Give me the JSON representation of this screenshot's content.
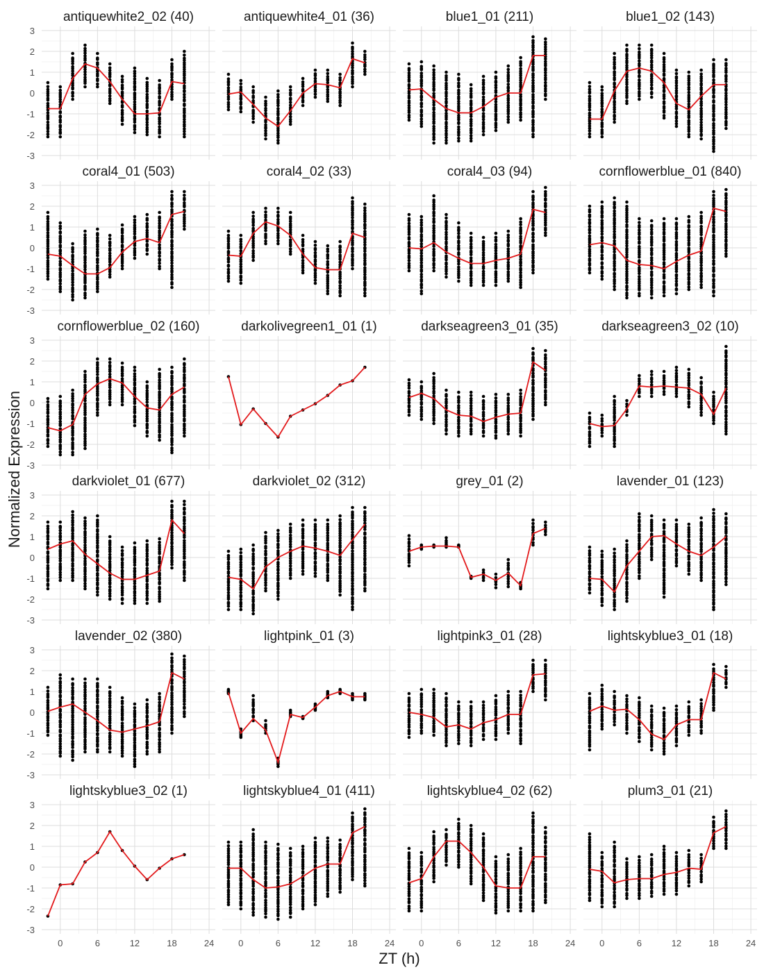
{
  "chart_data": {
    "type": "scatter",
    "xlabel": "ZT (h)",
    "ylabel": "Normalized Expression",
    "x_ticks": [
      0,
      6,
      12,
      18,
      24
    ],
    "y_ticks": [
      -3,
      -2,
      -1,
      0,
      1,
      2,
      3
    ],
    "xlim": [
      -3,
      25
    ],
    "ylim": [
      -3.2,
      3.2
    ],
    "grid": true,
    "point_color": "#000000",
    "line_color": "#e31a1c",
    "time_points": [
      -2,
      0,
      2,
      4,
      6,
      8,
      10,
      12,
      14,
      16,
      18,
      20
    ],
    "panels": [
      {
        "title": "antiquewhite2_02 (40)",
        "mean": [
          -0.75,
          -0.75,
          0.7,
          1.4,
          1.2,
          0.55,
          -0.3,
          -1.0,
          -1.0,
          -0.95,
          0.55,
          0.45
        ],
        "ymin": [
          -2.1,
          -2.1,
          -0.3,
          0.3,
          0.3,
          -0.5,
          -1.5,
          -1.9,
          -2.0,
          -2.1,
          -0.3,
          -2.1
        ],
        "ymax": [
          0.5,
          0.3,
          1.9,
          2.3,
          1.9,
          1.4,
          0.8,
          1.2,
          0.7,
          0.6,
          1.6,
          2.0
        ]
      },
      {
        "title": "antiquewhite4_01 (36)",
        "mean": [
          -0.05,
          0.05,
          -0.55,
          -1.2,
          -1.6,
          -0.85,
          0.0,
          0.45,
          0.4,
          0.25,
          1.65,
          1.45
        ],
        "ymin": [
          -0.8,
          -0.9,
          -1.4,
          -2.2,
          -2.4,
          -1.5,
          -0.6,
          -0.2,
          -0.4,
          -0.6,
          0.3,
          0.9
        ],
        "ymax": [
          0.9,
          0.6,
          0.3,
          -0.2,
          0.1,
          0.3,
          0.7,
          1.1,
          1.1,
          0.9,
          2.4,
          2.0
        ]
      },
      {
        "title": "blue1_01 (211)",
        "mean": [
          0.15,
          0.2,
          -0.3,
          -0.75,
          -0.95,
          -0.95,
          -0.65,
          -0.2,
          0.0,
          0.0,
          1.8,
          1.8
        ],
        "ymin": [
          -1.3,
          -1.6,
          -2.4,
          -2.4,
          -2.3,
          -2.3,
          -2.0,
          -1.8,
          -1.4,
          -1.3,
          -2.1,
          -0.3
        ],
        "ymax": [
          1.4,
          1.5,
          1.3,
          1.0,
          0.9,
          0.4,
          0.8,
          1.0,
          1.3,
          1.7,
          2.7,
          2.6
        ]
      },
      {
        "title": "blue1_02 (143)",
        "mean": [
          -1.25,
          -1.25,
          0.1,
          1.05,
          1.2,
          1.05,
          0.5,
          -0.5,
          -0.8,
          -0.15,
          0.4,
          0.4
        ],
        "ymin": [
          -2.1,
          -2.1,
          -1.4,
          -0.5,
          -0.3,
          -0.2,
          -1.2,
          -1.6,
          -2.1,
          -2.2,
          -2.8,
          -1.7
        ],
        "ymax": [
          0.5,
          0.3,
          1.9,
          2.3,
          2.3,
          2.3,
          1.9,
          1.1,
          1.0,
          1.1,
          1.6,
          1.6
        ]
      },
      {
        "title": "coral4_01 (503)",
        "mean": [
          -0.3,
          -0.4,
          -0.85,
          -1.25,
          -1.25,
          -0.95,
          -0.2,
          0.3,
          0.45,
          0.25,
          1.6,
          1.75
        ],
        "ymin": [
          -1.5,
          -2.1,
          -2.5,
          -2.4,
          -2.1,
          -1.4,
          -1.0,
          -0.5,
          -0.3,
          -1.0,
          -1.9,
          0.9
        ],
        "ymax": [
          1.7,
          1.2,
          0.2,
          0.8,
          0.9,
          0.6,
          1.1,
          1.5,
          1.6,
          1.7,
          2.7,
          2.7
        ]
      },
      {
        "title": "coral4_02 (33)",
        "mean": [
          -0.35,
          -0.4,
          0.7,
          1.25,
          1.05,
          0.6,
          -0.3,
          -0.95,
          -1.05,
          -1.05,
          0.7,
          0.5
        ],
        "ymin": [
          -1.6,
          -1.7,
          -0.6,
          0.2,
          0.2,
          -0.3,
          -1.2,
          -1.7,
          -2.2,
          -2.3,
          -1.0,
          -2.3
        ],
        "ymax": [
          0.8,
          0.6,
          1.7,
          1.9,
          1.9,
          1.7,
          0.6,
          0.3,
          0.1,
          0.3,
          2.4,
          2.1
        ]
      },
      {
        "title": "coral4_03 (94)",
        "mean": [
          0.0,
          -0.05,
          0.25,
          -0.2,
          -0.5,
          -0.75,
          -0.75,
          -0.6,
          -0.5,
          -0.3,
          1.85,
          1.7
        ],
        "ymin": [
          -1.1,
          -2.2,
          -1.1,
          -1.4,
          -1.6,
          -1.8,
          -1.8,
          -1.8,
          -1.6,
          -1.9,
          -1.2,
          0.6
        ],
        "ymax": [
          1.6,
          1.5,
          2.5,
          1.6,
          1.2,
          0.7,
          0.5,
          0.7,
          0.8,
          1.4,
          2.7,
          2.9
        ]
      },
      {
        "title": "cornflowerblue_01 (840)",
        "mean": [
          0.15,
          0.25,
          0.1,
          -0.6,
          -0.8,
          -0.85,
          -1.0,
          -0.65,
          -0.35,
          -0.15,
          1.9,
          1.75
        ],
        "ymin": [
          -1.2,
          -1.5,
          -2.0,
          -2.4,
          -2.3,
          -2.4,
          -2.3,
          -2.2,
          -2.0,
          -1.9,
          -2.3,
          -0.4
        ],
        "ymax": [
          2.0,
          2.2,
          2.4,
          2.2,
          1.4,
          1.3,
          1.4,
          1.4,
          1.5,
          1.7,
          2.7,
          2.8
        ]
      },
      {
        "title": "cornflowerblue_02 (160)",
        "mean": [
          -1.2,
          -1.35,
          -1.05,
          0.4,
          0.9,
          1.15,
          0.95,
          0.3,
          -0.25,
          -0.35,
          0.4,
          0.75
        ],
        "ymin": [
          -2.1,
          -2.5,
          -2.5,
          -2.2,
          -0.6,
          -0.1,
          -0.1,
          -1.1,
          -1.6,
          -1.8,
          -2.4,
          -1.6
        ],
        "ymax": [
          0.2,
          0.3,
          0.6,
          1.5,
          2.1,
          2.1,
          1.9,
          1.7,
          1.0,
          1.6,
          1.7,
          2.1
        ]
      },
      {
        "title": "darkolivegreen1_01 (1)",
        "mean": [
          1.25,
          -1.05,
          -0.3,
          -1.0,
          -1.65,
          -0.65,
          -0.35,
          -0.05,
          0.35,
          0.85,
          1.05,
          1.7
        ],
        "ymin": [
          1.25,
          -1.05,
          -0.3,
          -1.0,
          -1.65,
          -0.65,
          -0.35,
          -0.05,
          0.35,
          0.85,
          1.05,
          1.7
        ],
        "ymax": [
          1.25,
          -1.05,
          -0.3,
          -1.0,
          -1.65,
          -0.65,
          -0.35,
          -0.05,
          0.35,
          0.85,
          1.05,
          1.7
        ]
      },
      {
        "title": "darkseagreen3_01 (35)",
        "mean": [
          0.25,
          0.45,
          0.2,
          -0.35,
          -0.6,
          -0.65,
          -0.9,
          -0.7,
          -0.55,
          -0.5,
          1.95,
          1.55
        ],
        "ymin": [
          -0.6,
          -0.8,
          -1.0,
          -1.5,
          -1.6,
          -1.5,
          -1.6,
          -1.7,
          -1.5,
          -1.6,
          -0.8,
          -0.1
        ],
        "ymax": [
          1.1,
          1.0,
          1.4,
          0.6,
          0.5,
          0.5,
          0.3,
          0.4,
          0.4,
          0.6,
          2.6,
          2.5
        ]
      },
      {
        "title": "darkseagreen3_02 (10)",
        "mean": [
          -1.0,
          -1.15,
          -1.1,
          -0.3,
          0.8,
          0.75,
          0.8,
          0.75,
          0.7,
          0.4,
          -0.55,
          0.7
        ],
        "ymin": [
          -2.1,
          -1.6,
          -2.1,
          -0.6,
          0.3,
          0.3,
          0.4,
          0.3,
          -0.2,
          -0.6,
          -1.0,
          -1.5
        ],
        "ymax": [
          -0.5,
          -0.6,
          0.3,
          0.1,
          1.3,
          1.5,
          1.5,
          1.7,
          1.6,
          1.2,
          0.5,
          2.7
        ]
      },
      {
        "title": "darkviolet_01 (677)",
        "mean": [
          0.4,
          0.65,
          0.8,
          0.15,
          -0.3,
          -0.75,
          -1.05,
          -1.05,
          -0.85,
          -0.65,
          1.8,
          1.15
        ],
        "ymin": [
          -1.5,
          -1.1,
          -1.1,
          -1.5,
          -1.8,
          -2.0,
          -2.2,
          -2.2,
          -2.2,
          -2.1,
          -0.5,
          -1.1
        ],
        "ymax": [
          1.7,
          1.7,
          2.2,
          1.9,
          2.0,
          1.0,
          0.5,
          0.7,
          0.8,
          0.9,
          2.7,
          2.7
        ]
      },
      {
        "title": "darkviolet_02 (312)",
        "mean": [
          -0.95,
          -1.05,
          -1.5,
          -0.45,
          0.0,
          0.3,
          0.55,
          0.45,
          0.3,
          0.1,
          0.85,
          1.6
        ],
        "ymin": [
          -2.5,
          -2.5,
          -2.7,
          -1.6,
          -2.0,
          -1.0,
          -0.8,
          -0.9,
          -1.1,
          -1.8,
          -2.5,
          -1.6
        ],
        "ymax": [
          0.3,
          0.4,
          0.6,
          1.2,
          1.3,
          1.6,
          1.8,
          1.8,
          1.8,
          2.0,
          2.4,
          2.4
        ]
      },
      {
        "title": "grey_01 (2)",
        "mean": [
          0.3,
          0.5,
          0.55,
          0.55,
          0.5,
          -0.95,
          -0.8,
          -1.1,
          -0.75,
          -1.35,
          1.15,
          1.4
        ],
        "ymin": [
          -0.4,
          0.4,
          0.5,
          0.5,
          0.5,
          -1.0,
          -1.1,
          -1.45,
          -1.4,
          -1.5,
          0.6,
          1.1
        ],
        "ymax": [
          1.05,
          0.6,
          0.6,
          0.95,
          0.6,
          -0.9,
          -0.6,
          -0.8,
          -0.1,
          -1.2,
          1.8,
          1.7
        ]
      },
      {
        "title": "lavender_01 (123)",
        "mean": [
          -1.0,
          -1.05,
          -1.65,
          -0.4,
          0.3,
          1.0,
          1.05,
          0.65,
          0.3,
          0.1,
          0.5,
          1.0
        ],
        "ymin": [
          -1.7,
          -2.3,
          -2.5,
          -2.1,
          -1.0,
          -0.1,
          -1.9,
          -0.4,
          -0.8,
          -1.1,
          -2.5,
          -1.3
        ],
        "ymax": [
          0.5,
          0.3,
          0.4,
          0.8,
          2.1,
          2.0,
          1.8,
          1.8,
          1.6,
          1.9,
          2.3,
          2.1
        ]
      },
      {
        "title": "lavender_02 (380)",
        "mean": [
          0.05,
          0.25,
          0.4,
          0.0,
          -0.4,
          -0.85,
          -0.95,
          -0.8,
          -0.65,
          -0.45,
          1.9,
          1.6
        ],
        "ymin": [
          -1.1,
          -2.1,
          -2.3,
          -1.9,
          -1.9,
          -1.9,
          -2.1,
          -2.6,
          -2.0,
          -1.9,
          -1.0,
          -0.2
        ],
        "ymax": [
          1.2,
          1.8,
          1.6,
          1.6,
          1.6,
          1.2,
          0.7,
          0.4,
          0.6,
          0.9,
          2.8,
          2.7
        ]
      },
      {
        "title": "lightpink_01 (3)",
        "mean": [
          0.95,
          -1.0,
          -0.3,
          -0.85,
          -2.4,
          -0.1,
          -0.25,
          0.25,
          0.8,
          1.0,
          0.75,
          0.75
        ],
        "ymin": [
          0.9,
          -1.2,
          -0.4,
          -1.0,
          -2.6,
          -0.2,
          -0.3,
          0.1,
          0.7,
          0.9,
          0.6,
          0.6
        ],
        "ymax": [
          1.1,
          -0.8,
          0.8,
          -0.4,
          -2.2,
          0.1,
          -0.2,
          0.4,
          1.0,
          1.1,
          0.9,
          0.9
        ]
      },
      {
        "title": "lightpink3_01 (28)",
        "mean": [
          0.0,
          -0.1,
          -0.25,
          -0.7,
          -0.6,
          -0.8,
          -0.5,
          -0.35,
          -0.1,
          -0.1,
          1.8,
          1.85
        ],
        "ymin": [
          -1.2,
          -1.0,
          -1.1,
          -1.6,
          -1.5,
          -1.6,
          -1.3,
          -1.3,
          -1.0,
          -1.5,
          1.0,
          0.6
        ],
        "ymax": [
          0.9,
          1.1,
          1.1,
          0.9,
          0.5,
          0.5,
          0.5,
          0.8,
          1.0,
          1.0,
          2.5,
          2.5
        ]
      },
      {
        "title": "lightskyblue3_01 (18)",
        "mean": [
          0.05,
          0.3,
          0.1,
          0.15,
          -0.35,
          -1.05,
          -1.3,
          -0.6,
          -0.35,
          -0.35,
          1.9,
          1.6
        ],
        "ymin": [
          -1.8,
          -0.8,
          -0.6,
          -1.0,
          -1.4,
          -1.8,
          -2.0,
          -1.6,
          -1.1,
          -1.0,
          0.1,
          1.2
        ],
        "ymax": [
          0.9,
          1.3,
          1.0,
          0.8,
          0.7,
          0.3,
          0.2,
          0.3,
          0.5,
          0.6,
          2.3,
          2.2
        ]
      },
      {
        "title": "lightskyblue3_02 (1)",
        "mean": [
          -2.35,
          -0.85,
          -0.8,
          0.25,
          0.7,
          1.7,
          0.8,
          0.05,
          -0.6,
          -0.05,
          0.4,
          0.6
        ],
        "ymin": [
          -2.35,
          -0.85,
          -0.8,
          0.25,
          0.7,
          1.7,
          0.8,
          0.05,
          -0.6,
          -0.05,
          0.4,
          0.6
        ],
        "ymax": [
          -2.35,
          -0.85,
          -0.8,
          0.25,
          0.7,
          1.7,
          0.8,
          0.05,
          -0.6,
          -0.05,
          0.4,
          0.6
        ]
      },
      {
        "title": "lightskyblue4_01 (411)",
        "mean": [
          -0.05,
          -0.05,
          -0.6,
          -1.0,
          -0.95,
          -0.8,
          -0.45,
          -0.05,
          0.15,
          0.15,
          1.65,
          1.95
        ],
        "ymin": [
          -1.8,
          -2.0,
          -2.3,
          -2.4,
          -2.5,
          -2.4,
          -2.0,
          -1.8,
          -1.4,
          -1.2,
          -0.6,
          -0.9
        ],
        "ymax": [
          1.2,
          1.2,
          1.8,
          1.2,
          1.1,
          0.9,
          1.0,
          1.4,
          1.4,
          1.3,
          2.6,
          2.8
        ]
      },
      {
        "title": "lightskyblue4_02 (62)",
        "mean": [
          -0.75,
          -0.55,
          0.5,
          1.25,
          1.25,
          0.7,
          0.0,
          -0.9,
          -1.0,
          -1.0,
          0.5,
          0.5
        ],
        "ymin": [
          -2.1,
          -2.1,
          -0.7,
          0.1,
          0.0,
          -0.8,
          -1.6,
          -2.2,
          -2.1,
          -2.1,
          -2.1,
          -1.7
        ],
        "ymax": [
          0.9,
          0.7,
          1.7,
          1.8,
          2.3,
          2.0,
          1.6,
          0.5,
          0.6,
          0.9,
          2.6,
          1.9
        ]
      },
      {
        "title": "plum3_01 (21)",
        "mean": [
          -0.1,
          -0.2,
          -0.75,
          -0.6,
          -0.55,
          -0.55,
          -0.35,
          -0.25,
          -0.05,
          -0.1,
          1.65,
          1.95
        ],
        "ymin": [
          -1.6,
          -1.9,
          -1.9,
          -1.5,
          -1.5,
          -1.4,
          -1.3,
          -1.3,
          -0.9,
          -0.7,
          0.9,
          0.9
        ],
        "ymax": [
          1.6,
          0.7,
          1.2,
          0.4,
          0.5,
          0.6,
          1.0,
          0.7,
          0.8,
          0.6,
          2.4,
          2.7
        ]
      }
    ]
  }
}
